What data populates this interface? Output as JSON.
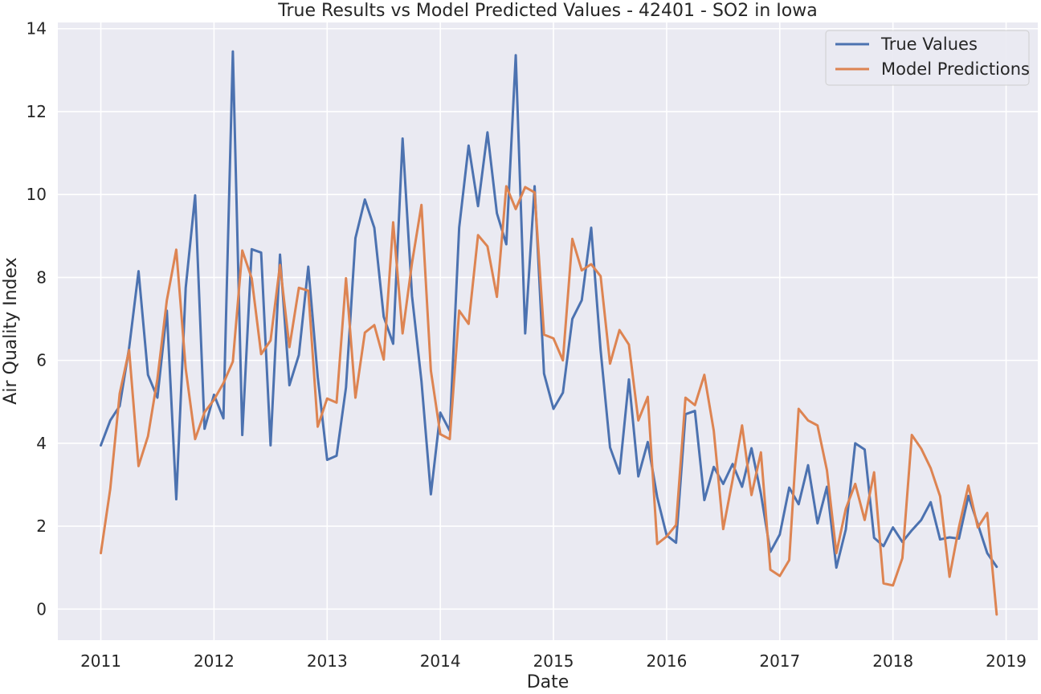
{
  "chart_data": {
    "type": "line",
    "title": "True Results vs Model Predicted Values - 42401 - SO2 in Iowa",
    "xlabel": "Date",
    "ylabel": "Air Quality Index",
    "x_start": "2011-01",
    "x_step": "1 month",
    "xlim": [
      2010.62,
      2019.28
    ],
    "ylim": [
      -0.75,
      14.15
    ],
    "xticks": [
      "2011",
      "2012",
      "2013",
      "2014",
      "2015",
      "2016",
      "2017",
      "2018",
      "2019"
    ],
    "yticks": [
      "0",
      "2",
      "4",
      "6",
      "8",
      "10",
      "12",
      "14"
    ],
    "grid": true,
    "legend_position": "top-right",
    "background": "#eaeaf2",
    "series": [
      {
        "name": "True Values",
        "color": "#4c72b0",
        "values": [
          3.95,
          4.55,
          4.9,
          6.3,
          8.15,
          5.65,
          5.1,
          7.2,
          2.65,
          7.75,
          9.98,
          4.35,
          5.17,
          4.6,
          13.45,
          4.2,
          8.68,
          8.6,
          3.95,
          8.55,
          5.4,
          6.13,
          8.26,
          5.6,
          3.6,
          3.7,
          5.35,
          8.95,
          9.88,
          9.2,
          7.05,
          6.4,
          11.35,
          7.55,
          5.5,
          2.77,
          4.74,
          4.3,
          9.2,
          11.18,
          9.72,
          11.5,
          9.55,
          8.8,
          13.36,
          6.65,
          10.2,
          5.68,
          4.83,
          5.22,
          7.0,
          7.45,
          9.2,
          6.25,
          3.9,
          3.27,
          5.54,
          3.2,
          4.03,
          2.7,
          1.78,
          1.6,
          4.7,
          4.78,
          2.63,
          3.43,
          3.02,
          3.5,
          2.95,
          3.88,
          2.78,
          1.38,
          1.8,
          2.93,
          2.53,
          3.47,
          2.07,
          2.95,
          1.0,
          1.92,
          4.0,
          3.85,
          1.72,
          1.52,
          1.97,
          1.62,
          1.9,
          2.15,
          2.58,
          1.68,
          1.73,
          1.7,
          2.73,
          2.05,
          1.35,
          1.02
        ]
      },
      {
        "name": "Model Predictions",
        "color": "#dd8452",
        "values": [
          1.35,
          2.9,
          5.2,
          6.25,
          3.45,
          4.17,
          5.55,
          7.45,
          8.67,
          5.8,
          4.1,
          4.75,
          5.05,
          5.45,
          5.97,
          8.65,
          7.98,
          6.15,
          6.48,
          8.3,
          6.32,
          7.75,
          7.68,
          4.4,
          5.08,
          4.98,
          7.98,
          5.1,
          6.67,
          6.85,
          6.02,
          9.33,
          6.65,
          8.35,
          9.75,
          5.75,
          4.22,
          4.1,
          7.2,
          6.88,
          9.02,
          8.75,
          7.53,
          10.2,
          9.65,
          10.18,
          10.05,
          6.62,
          6.53,
          6.0,
          8.93,
          8.17,
          8.32,
          8.03,
          5.92,
          6.73,
          6.38,
          4.55,
          5.12,
          1.57,
          1.75,
          2.03,
          5.1,
          4.92,
          5.65,
          4.3,
          1.93,
          3.12,
          4.43,
          2.75,
          3.78,
          0.95,
          0.8,
          1.18,
          4.83,
          4.55,
          4.43,
          3.35,
          1.35,
          2.42,
          3.02,
          2.15,
          3.3,
          0.62,
          0.57,
          1.23,
          4.2,
          3.87,
          3.4,
          2.72,
          0.78,
          1.98,
          2.98,
          1.97,
          2.32,
          -0.13
        ]
      }
    ]
  }
}
